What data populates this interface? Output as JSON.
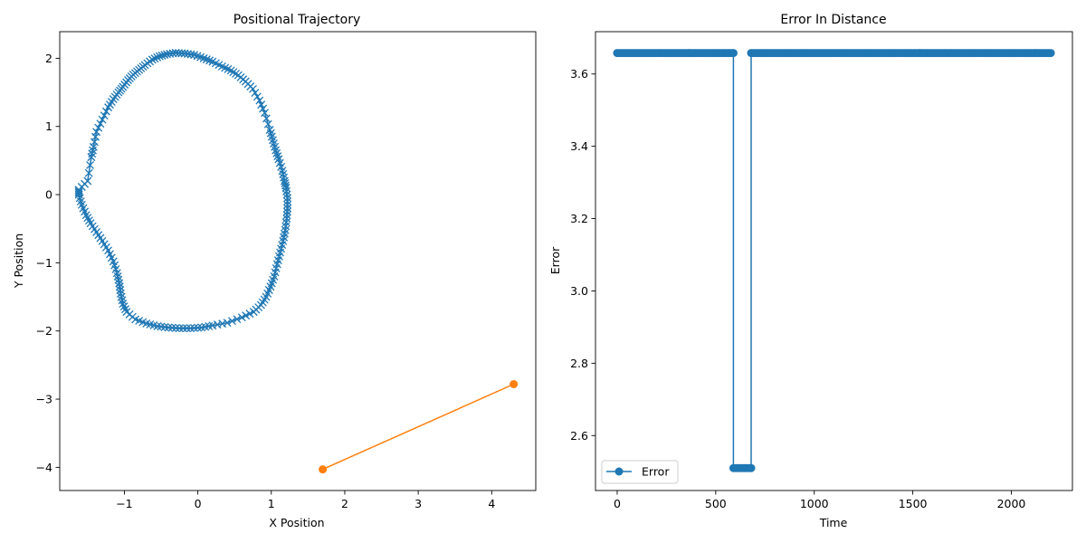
{
  "colors": {
    "series1": "#1f77b4",
    "series2": "#ff7f0e",
    "axis": "#000000",
    "background": "#ffffff"
  },
  "chart_data": [
    {
      "type": "line",
      "title": "Positional Trajectory",
      "xlabel": "X Position",
      "ylabel": "Y Position",
      "xlim": [
        -1.88,
        4.6
      ],
      "ylim": [
        -4.34,
        2.39
      ],
      "xticks": [
        -1,
        0,
        1,
        2,
        3,
        4
      ],
      "yticks": [
        -4,
        -3,
        -2,
        -1,
        0,
        1,
        2
      ],
      "xtick_labels": [
        "−1",
        "0",
        "1",
        "2",
        "3",
        "4"
      ],
      "ytick_labels": [
        "−4",
        "−3",
        "−2",
        "−1",
        "0",
        "1",
        "2"
      ],
      "grid": false,
      "legend": null,
      "series": [
        {
          "marker": "x",
          "color": "#1f77b4",
          "closed": true,
          "x": [
            -1.62,
            -1.5,
            -1.45,
            -1.42,
            -1.38,
            -1.3,
            -1.22,
            -1.15,
            -1.08,
            -1.02,
            -0.95,
            -0.88,
            -0.8,
            -0.72,
            -0.62,
            -0.52,
            -0.42,
            -0.3,
            -0.18,
            -0.05,
            0.08,
            0.2,
            0.33,
            0.45,
            0.55,
            0.65,
            0.75,
            0.84,
            0.91,
            0.98,
            1.02,
            1.06,
            1.1,
            1.15,
            1.18,
            1.2,
            1.22,
            1.22,
            1.21,
            1.19,
            1.16,
            1.12,
            1.08,
            1.04,
            0.99,
            0.93,
            0.86,
            0.76,
            0.6,
            0.4,
            0.2,
            0.05,
            -0.1,
            -0.25,
            -0.4,
            -0.55,
            -0.7,
            -0.85,
            -0.97,
            -1.02,
            -1.05,
            -1.07,
            -1.1,
            -1.15,
            -1.22,
            -1.3,
            -1.38,
            -1.46,
            -1.52,
            -1.58,
            -1.62
          ],
          "y": [
            0.07,
            0.2,
            0.55,
            0.7,
            0.92,
            1.1,
            1.28,
            1.4,
            1.5,
            1.58,
            1.68,
            1.76,
            1.83,
            1.9,
            1.98,
            2.03,
            2.06,
            2.08,
            2.07,
            2.05,
            2.0,
            1.95,
            1.88,
            1.82,
            1.75,
            1.66,
            1.55,
            1.38,
            1.2,
            0.95,
            0.8,
            0.65,
            0.52,
            0.35,
            0.2,
            0.1,
            -0.05,
            -0.2,
            -0.35,
            -0.52,
            -0.68,
            -0.85,
            -1.02,
            -1.2,
            -1.35,
            -1.5,
            -1.62,
            -1.72,
            -1.8,
            -1.88,
            -1.92,
            -1.95,
            -1.96,
            -1.96,
            -1.95,
            -1.93,
            -1.89,
            -1.83,
            -1.72,
            -1.6,
            -1.45,
            -1.3,
            -1.15,
            -0.98,
            -0.82,
            -0.68,
            -0.55,
            -0.42,
            -0.3,
            -0.15,
            0.0
          ]
        },
        {
          "marker": "o",
          "color": "#ff7f0e",
          "closed": false,
          "x": [
            1.7,
            4.3
          ],
          "y": [
            -4.03,
            -2.78
          ]
        }
      ]
    },
    {
      "type": "line",
      "title": "Error In Distance",
      "xlabel": "Time",
      "ylabel": "Error",
      "xlim": [
        -110,
        2310
      ],
      "ylim": [
        2.448,
        3.717
      ],
      "xticks": [
        0,
        500,
        1000,
        1500,
        2000
      ],
      "yticks": [
        2.6,
        2.8,
        3.0,
        3.2,
        3.4,
        3.6
      ],
      "xtick_labels": [
        "0",
        "500",
        "1000",
        "1500",
        "2000"
      ],
      "ytick_labels": [
        "2.6",
        "2.8",
        "3.0",
        "3.2",
        "3.4",
        "3.6"
      ],
      "grid": false,
      "legend": "lower-left",
      "series": [
        {
          "name": "Error",
          "marker": "o",
          "color": "#1f77b4",
          "segments": [
            {
              "x_start": 0,
              "x_end": 590,
              "value": 3.658
            },
            {
              "x_start": 590,
              "x_end": 680,
              "value": 2.51
            },
            {
              "x_start": 680,
              "x_end": 2200,
              "value": 3.658
            }
          ]
        }
      ]
    }
  ]
}
